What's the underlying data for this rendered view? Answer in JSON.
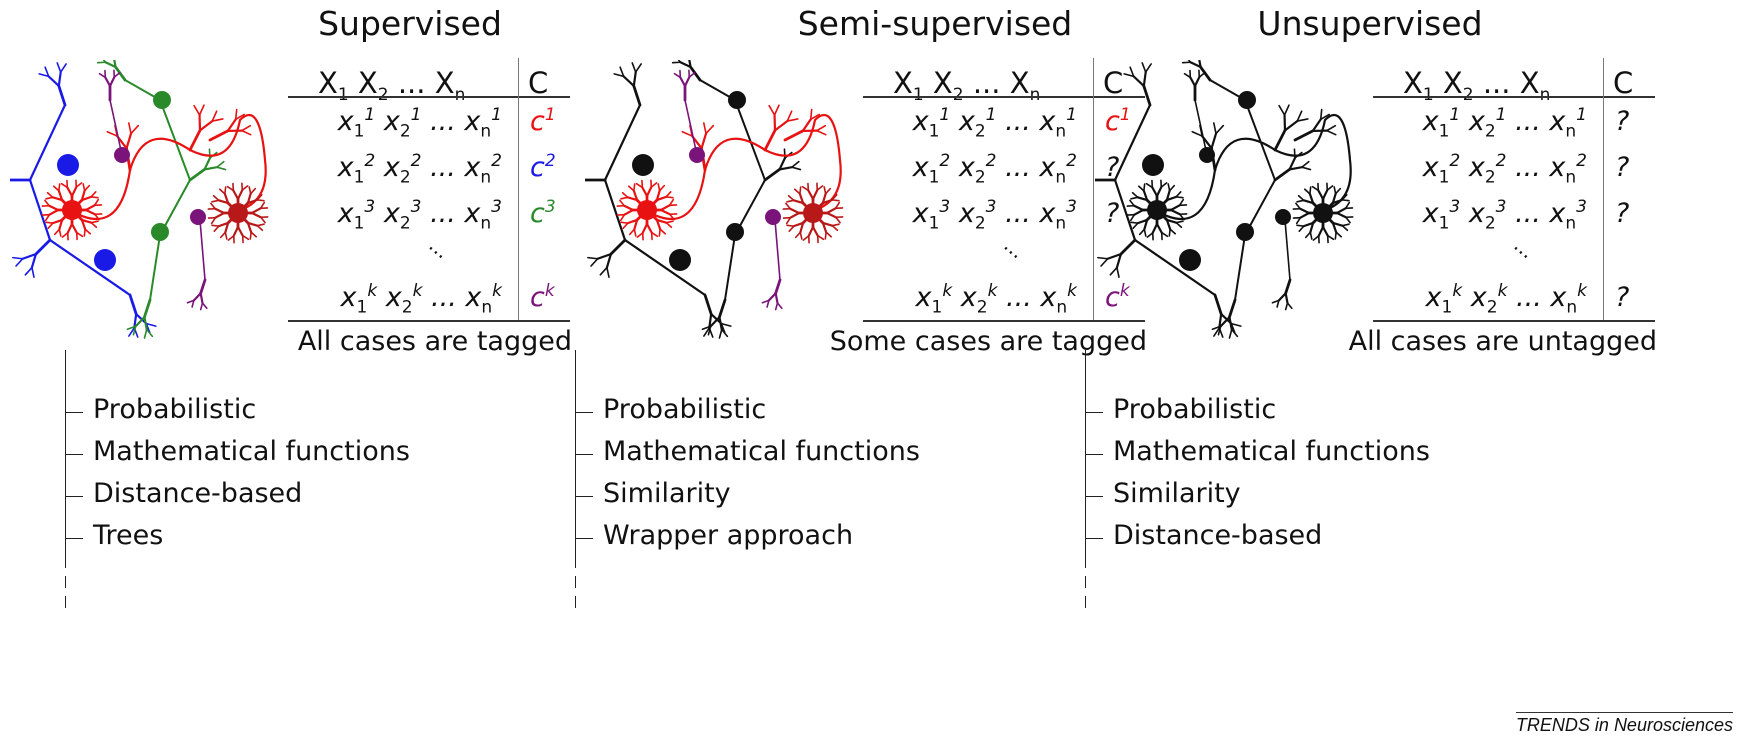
{
  "footer": "TRENDS in Neurosciences",
  "header_vars": [
    "X",
    "1",
    "X",
    "2",
    "...",
    "X",
    "n"
  ],
  "header_c": "C",
  "panels": [
    {
      "title": "Supervised",
      "caption": "All cases are tagged",
      "neuron_colors": [
        "#1a1ae6",
        "#e81212",
        "#2a8a2a",
        "#7a147a",
        "#b81818"
      ],
      "class_values": [
        {
          "base": "c",
          "sup": "1",
          "color": "#e81212"
        },
        {
          "base": "c",
          "sup": "2",
          "color": "#1a1ae6"
        },
        {
          "base": "c",
          "sup": "3",
          "color": "#2a8a2a"
        },
        {
          "base": "c",
          "sup": "k",
          "color": "#7a147a"
        }
      ],
      "methods": [
        "Probabilistic",
        "Mathematical functions",
        "Distance-based",
        "Trees"
      ]
    },
    {
      "title": "Semi-supervised",
      "caption": "Some cases are tagged",
      "neuron_colors": [
        "#111111",
        "#e81212",
        "#111111",
        "#7a147a",
        "#b81818"
      ],
      "class_values": [
        {
          "base": "c",
          "sup": "1",
          "color": "#e81212"
        },
        {
          "base": "?",
          "sup": "",
          "color": "#111111"
        },
        {
          "base": "?",
          "sup": "",
          "color": "#111111"
        },
        {
          "base": "c",
          "sup": "k",
          "color": "#7a147a"
        }
      ],
      "methods": [
        "Probabilistic",
        "Mathematical functions",
        "Similarity",
        "Wrapper approach"
      ]
    },
    {
      "title": "Unsupervised",
      "caption": "All cases are untagged",
      "neuron_colors": [
        "#111111",
        "#111111",
        "#111111",
        "#111111",
        "#111111"
      ],
      "class_values": [
        {
          "base": "?",
          "sup": "",
          "color": "#111111"
        },
        {
          "base": "?",
          "sup": "",
          "color": "#111111"
        },
        {
          "base": "?",
          "sup": "",
          "color": "#111111"
        },
        {
          "base": "?",
          "sup": "",
          "color": "#111111"
        }
      ],
      "methods": [
        "Probabilistic",
        "Mathematical functions",
        "Similarity",
        "Distance-based"
      ]
    }
  ],
  "rows": [
    {
      "sup": "1"
    },
    {
      "sup": "2"
    },
    {
      "sup": "3"
    },
    {
      "sup": "k"
    }
  ],
  "row_parts": {
    "x": "x",
    "i1": "1",
    "i2": "2",
    "in": "n",
    "ellipsis": " ... "
  },
  "vertical_ellipsis": "..."
}
